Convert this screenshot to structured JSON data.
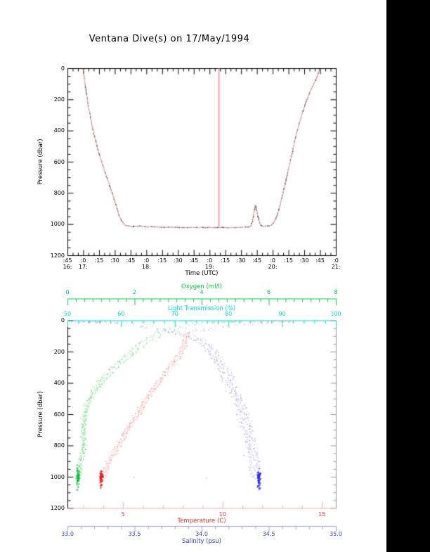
{
  "page": {
    "background": "#ffffff",
    "right_bar_color": "#000000"
  },
  "chart_data": [
    {
      "type": "line",
      "title": "Ventana Dive(s) on 17/May/1994",
      "xlabel": "Time (UTC)",
      "ylabel": "Pressure (dbar)",
      "axis_color": "#000000",
      "x_axis": {
        "start_label": "16:45",
        "end_label": "21:00",
        "total_minutes": 255,
        "major_tick_minutes": 15,
        "minor_tick_minutes": 5,
        "minute_labels": [
          ":45",
          ":0",
          ":15",
          ":30",
          ":45",
          ":0",
          ":15",
          ":30",
          ":45",
          ":0",
          ":15",
          ":30",
          ":45",
          ":0",
          ":15",
          ":30",
          ":45",
          ":0"
        ],
        "hour_labels": [
          {
            "text": "16:",
            "minute": 0
          },
          {
            "text": "17:",
            "minute": 15
          },
          {
            "text": "18:",
            "minute": 75
          },
          {
            "text": "19:",
            "minute": 135
          },
          {
            "text": "20:",
            "minute": 195
          },
          {
            "text": "21:",
            "minute": 255
          }
        ]
      },
      "ylim": [
        1200,
        0
      ],
      "y_ticks": [
        0,
        200,
        400,
        600,
        800,
        1000,
        1200
      ],
      "y_minor_step": 50,
      "series": [
        {
          "name": "dive-pressure-trace",
          "color": "#e08888",
          "dot_mix_color": "#303030",
          "points_time_min_vs_dbar": [
            [
              14,
              0
            ],
            [
              15,
              45
            ],
            [
              16,
              100
            ],
            [
              17.5,
              165
            ],
            [
              19,
              235
            ],
            [
              21,
              305
            ],
            [
              23,
              372
            ],
            [
              25,
              432
            ],
            [
              27,
              490
            ],
            [
              29.5,
              548
            ],
            [
              32,
              602
            ],
            [
              34.5,
              652
            ],
            [
              37,
              702
            ],
            [
              39.5,
              752
            ],
            [
              42,
              802
            ],
            [
              44.5,
              856
            ],
            [
              46.5,
              900
            ],
            [
              48.5,
              942
            ],
            [
              50.5,
              972
            ],
            [
              52.5,
              992
            ],
            [
              54.5,
              1004
            ],
            [
              57,
              1008
            ],
            [
              62,
              1010
            ],
            [
              68,
              1008
            ],
            [
              74,
              1012
            ],
            [
              80,
              1012
            ],
            [
              86,
              1014
            ],
            [
              92,
              1015
            ],
            [
              98,
              1015
            ],
            [
              104,
              1016
            ],
            [
              110,
              1017
            ],
            [
              116,
              1016
            ],
            [
              122,
              1017
            ],
            [
              128,
              1016
            ],
            [
              134,
              1017
            ],
            [
              140,
              1018
            ],
            [
              146,
              1017
            ],
            [
              152,
              1018
            ],
            [
              158,
              1017
            ],
            [
              164,
              1016
            ],
            [
              170,
              1014
            ],
            [
              172,
              1013
            ],
            [
              173.5,
              1006
            ],
            [
              175,
              978
            ],
            [
              176,
              940
            ],
            [
              177,
              900
            ],
            [
              177.7,
              876
            ],
            [
              178.4,
              884
            ],
            [
              179.2,
              912
            ],
            [
              180.5,
              955
            ],
            [
              182,
              990
            ],
            [
              183.5,
              1004
            ],
            [
              185,
              1009
            ],
            [
              188,
              1008
            ],
            [
              191,
              1006
            ],
            [
              193,
              1002
            ],
            [
              195,
              988
            ],
            [
              197,
              962
            ],
            [
              199,
              926
            ],
            [
              201,
              880
            ],
            [
              203,
              826
            ],
            [
              205,
              768
            ],
            [
              207,
              708
            ],
            [
              209,
              648
            ],
            [
              211,
              588
            ],
            [
              213,
              528
            ],
            [
              215,
              468
            ],
            [
              217,
              412
            ],
            [
              219,
              360
            ],
            [
              221,
              312
            ],
            [
              223,
              268
            ],
            [
              225,
              228
            ],
            [
              227,
              192
            ],
            [
              229,
              158
            ],
            [
              231,
              128
            ],
            [
              233,
              100
            ],
            [
              235,
              72
            ],
            [
              236.5,
              48
            ],
            [
              237.5,
              24
            ],
            [
              238.5,
              8
            ],
            [
              239,
              0
            ]
          ]
        },
        {
          "name": "event-vertical-line",
          "color": "#f5b5b5",
          "time_min": 143.5,
          "pressure_range_dbar": [
            0,
            1015
          ]
        }
      ]
    },
    {
      "type": "scatter",
      "ylabel": "Pressure (dbar)",
      "ylim": [
        1200,
        0
      ],
      "y_ticks": [
        0,
        200,
        400,
        600,
        800,
        1000,
        1200
      ],
      "y_minor_step": 50,
      "right_edge_color": "#999999",
      "left_edge_color": "#000000",
      "axes": {
        "oxygen": {
          "label": "Oxygen (ml/l)",
          "color": "#00cc44",
          "range": [
            0,
            8
          ],
          "ticks": [
            0,
            2,
            4,
            6,
            8
          ],
          "minor_step": 0.25,
          "position": "floating-top"
        },
        "light": {
          "label": "Light Transmission (%)",
          "color": "#00dddd",
          "range": [
            50,
            100
          ],
          "ticks": [
            50,
            60,
            70,
            80,
            90,
            100
          ],
          "minor_step": 2,
          "position": "plot-top-edge"
        },
        "temperature": {
          "label": "Temperature (C)",
          "color": "#ee3333",
          "line_color": "#ffaaaa",
          "range": [
            2.2,
            15.7
          ],
          "ticks": [
            5,
            10,
            15
          ],
          "minor_step": 1,
          "position": "plot-bottom-edge"
        },
        "salinity": {
          "label": "Salinity (psu)",
          "color": "#3344dd",
          "line_color": "#99a0ee",
          "range": [
            33.0,
            35.0
          ],
          "ticks": [
            "33.0",
            "33.5",
            "34.0",
            "34.5",
            "35.0"
          ],
          "tick_values": [
            33.0,
            33.5,
            34.0,
            34.5,
            35.0
          ],
          "minor_step": 0.1,
          "position": "floating-bottom"
        }
      },
      "series": [
        {
          "name": "oxygen-profile",
          "axis": "oxygen",
          "dot_color": "#55cc66",
          "blob_color": "#00c033",
          "points_dbar_vs_value": [
            [
              0,
              4.8
            ],
            [
              5,
              4.5
            ],
            [
              10,
              4.2
            ],
            [
              20,
              3.6
            ],
            [
              35,
              3.2
            ],
            [
              50,
              2.95
            ],
            [
              75,
              2.65
            ],
            [
              100,
              2.45
            ],
            [
              150,
              2.05
            ],
            [
              200,
              1.8
            ],
            [
              250,
              1.55
            ],
            [
              300,
              1.3
            ],
            [
              350,
              1.08
            ],
            [
              400,
              0.9
            ],
            [
              450,
              0.72
            ],
            [
              500,
              0.6
            ],
            [
              550,
              0.52
            ],
            [
              600,
              0.48
            ],
            [
              650,
              0.44
            ],
            [
              700,
              0.42
            ],
            [
              750,
              0.43
            ],
            [
              800,
              0.45
            ],
            [
              850,
              0.4
            ],
            [
              900,
              0.34
            ],
            [
              950,
              0.3
            ],
            [
              1005,
              0.28
            ]
          ]
        },
        {
          "name": "temperature-profile",
          "axis": "temperature",
          "dot_color": "#ee8888",
          "blob_color": "#ee1515",
          "points_dbar_vs_value": [
            [
              0,
              12.8
            ],
            [
              5,
              12.6
            ],
            [
              10,
              12.2
            ],
            [
              20,
              11.2
            ],
            [
              30,
              10.3
            ],
            [
              40,
              9.7
            ],
            [
              50,
              9.2
            ],
            [
              60,
              8.7
            ],
            [
              70,
              8.25
            ],
            [
              80,
              8.1
            ],
            [
              100,
              8.05
            ],
            [
              130,
              8.0
            ],
            [
              160,
              7.95
            ],
            [
              200,
              7.8
            ],
            [
              250,
              7.5
            ],
            [
              300,
              7.2
            ],
            [
              350,
              6.9
            ],
            [
              400,
              6.65
            ],
            [
              450,
              6.3
            ],
            [
              500,
              6.05
            ],
            [
              550,
              5.8
            ],
            [
              600,
              5.6
            ],
            [
              650,
              5.3
            ],
            [
              700,
              5.05
            ],
            [
              750,
              4.85
            ],
            [
              800,
              4.65
            ],
            [
              850,
              4.4
            ],
            [
              900,
              4.15
            ],
            [
              950,
              4.0
            ],
            [
              1005,
              3.85
            ]
          ]
        },
        {
          "name": "salinity-profile",
          "axis": "salinity",
          "dot_color": "#8888dd",
          "blob_color": "#2222ee",
          "points_dbar_vs_value": [
            [
              0,
              33.2
            ],
            [
              5,
              33.25
            ],
            [
              10,
              33.3
            ],
            [
              20,
              33.42
            ],
            [
              30,
              33.55
            ],
            [
              50,
              33.7
            ],
            [
              70,
              33.82
            ],
            [
              100,
              33.95
            ],
            [
              130,
              34.0
            ],
            [
              160,
              34.05
            ],
            [
              200,
              34.1
            ],
            [
              250,
              34.13
            ],
            [
              300,
              34.17
            ],
            [
              350,
              34.2
            ],
            [
              400,
              34.23
            ],
            [
              450,
              34.25
            ],
            [
              500,
              34.28
            ],
            [
              550,
              34.3
            ],
            [
              600,
              34.32
            ],
            [
              650,
              34.34
            ],
            [
              700,
              34.35
            ],
            [
              750,
              34.37
            ],
            [
              800,
              34.38
            ],
            [
              850,
              34.39
            ],
            [
              900,
              34.4
            ],
            [
              950,
              34.41
            ],
            [
              1005,
              34.42
            ]
          ],
          "stray_points_value_vs_dbar": [
            [
              33.49,
              1000
            ],
            [
              34.03,
              1003
            ]
          ]
        },
        {
          "name": "light-transmission-points",
          "axis": "light",
          "dot_color": "#66dddd",
          "points_value_vs_dbar": [
            [
              53,
              4
            ],
            [
              54,
              6
            ],
            [
              55,
              3
            ],
            [
              56,
              5
            ],
            [
              57,
              8
            ],
            [
              58,
              4
            ],
            [
              59,
              6
            ],
            [
              60,
              3
            ],
            [
              61,
              7
            ],
            [
              62,
              5
            ],
            [
              63,
              4
            ],
            [
              64,
              8
            ],
            [
              66,
              5
            ],
            [
              68,
              6
            ],
            [
              70,
              4
            ],
            [
              71,
              7
            ],
            [
              72,
              5
            ],
            [
              73,
              3
            ],
            [
              74,
              6
            ],
            [
              75,
              8
            ],
            [
              76,
              4
            ],
            [
              77,
              5
            ],
            [
              78,
              7
            ],
            [
              79,
              3
            ],
            [
              80,
              5
            ],
            [
              82,
              6
            ],
            [
              84,
              4
            ],
            [
              86,
              5
            ],
            [
              88,
              6
            ]
          ]
        }
      ]
    }
  ]
}
